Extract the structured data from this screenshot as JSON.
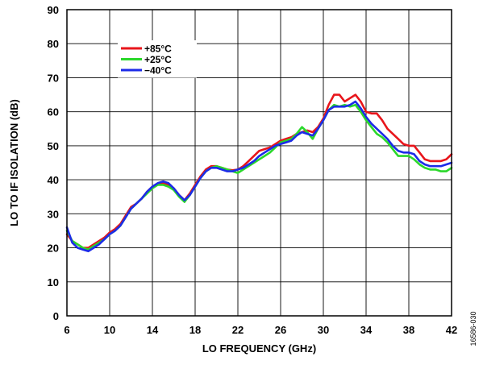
{
  "chart_data": {
    "type": "line",
    "xlabel": "LO FREQUENCY (GHz)",
    "ylabel": "LO TO IF ISOLATION (dB)",
    "xlim": [
      6,
      42
    ],
    "ylim": [
      0,
      90
    ],
    "xticks": [
      6,
      10,
      14,
      18,
      22,
      26,
      30,
      34,
      38,
      42
    ],
    "yticks": [
      0,
      10,
      20,
      30,
      40,
      50,
      60,
      70,
      80,
      90
    ],
    "grid": true,
    "legend_position": "top-left",
    "figure_id": "16586-030",
    "series": [
      {
        "name": "+85°C",
        "color": "#e8151b",
        "x": [
          6,
          6.5,
          7,
          7.5,
          8,
          8.5,
          9,
          9.5,
          10,
          10.5,
          11,
          11.5,
          12,
          12.5,
          13,
          13.5,
          14,
          14.5,
          15,
          15.5,
          16,
          16.5,
          17,
          17.5,
          18,
          18.5,
          19,
          19.5,
          20,
          20.5,
          21,
          21.5,
          22,
          22.5,
          23,
          23.5,
          24,
          24.5,
          25,
          25.5,
          26,
          26.5,
          27,
          27.5,
          28,
          28.5,
          29,
          29.5,
          30,
          30.5,
          31,
          31.5,
          32,
          32.5,
          33,
          33.5,
          34,
          34.5,
          35,
          35.5,
          36,
          36.5,
          37,
          37.5,
          38,
          38.5,
          39,
          39.5,
          40,
          40.5,
          41,
          41.5,
          42
        ],
        "y": [
          24,
          22,
          21,
          20,
          20,
          21,
          22,
          23,
          24.5,
          25.5,
          27,
          29.5,
          32,
          33,
          34.5,
          36.5,
          38,
          38.8,
          39,
          38.5,
          37.5,
          35.5,
          34,
          36,
          38.5,
          41,
          43,
          44,
          44,
          43.5,
          43,
          42.8,
          43,
          44,
          45.5,
          47,
          48.5,
          49,
          49.5,
          50.5,
          51.5,
          52,
          52.5,
          53.5,
          54,
          54.5,
          54,
          55.5,
          58,
          62,
          65,
          65,
          63,
          64,
          65,
          63,
          60,
          59.5,
          59.5,
          57.5,
          55,
          53.5,
          52,
          50.5,
          50,
          50,
          48,
          46,
          45.5,
          45.5,
          45.5,
          46,
          47.5
        ]
      },
      {
        "name": "+25°C",
        "color": "#2bd82b",
        "x": [
          6,
          6.5,
          7,
          7.5,
          8,
          8.5,
          9,
          9.5,
          10,
          10.5,
          11,
          11.5,
          12,
          12.5,
          13,
          13.5,
          14,
          14.5,
          15,
          15.5,
          16,
          16.5,
          17,
          17.5,
          18,
          18.5,
          19,
          19.5,
          20,
          20.5,
          21,
          21.5,
          22,
          22.5,
          23,
          23.5,
          24,
          24.5,
          25,
          25.5,
          26,
          26.5,
          27,
          27.5,
          28,
          28.5,
          29,
          29.5,
          30,
          30.5,
          31,
          31.5,
          32,
          32.5,
          33,
          33.5,
          34,
          34.5,
          35,
          35.5,
          36,
          36.5,
          37,
          37.5,
          38,
          38.5,
          39,
          39.5,
          40,
          40.5,
          41,
          41.5,
          42
        ],
        "y": [
          25,
          22,
          21,
          20,
          19.5,
          20.5,
          21.5,
          22.5,
          24,
          25,
          26.5,
          29,
          31.5,
          33,
          34.5,
          36,
          37.5,
          38.5,
          38.5,
          38,
          37,
          35,
          33.5,
          35.5,
          38,
          40.5,
          42.5,
          43.5,
          44,
          43.5,
          43,
          42.5,
          42,
          43,
          44,
          45,
          46,
          47,
          48,
          49.5,
          51,
          51.5,
          52,
          53.5,
          55.5,
          54,
          52,
          55,
          57.5,
          60.5,
          62,
          61.5,
          62,
          61.5,
          62,
          60,
          57.5,
          55.5,
          53.5,
          52.5,
          51,
          49,
          47,
          47,
          47,
          46,
          44.5,
          43.5,
          43,
          43,
          42.5,
          42.5,
          43.5
        ]
      },
      {
        "name": "−40°C",
        "color": "#1c2be8",
        "x": [
          6,
          6.5,
          7,
          7.5,
          8,
          8.5,
          9,
          9.5,
          10,
          10.5,
          11,
          11.5,
          12,
          12.5,
          13,
          13.5,
          14,
          14.5,
          15,
          15.5,
          16,
          16.5,
          17,
          17.5,
          18,
          18.5,
          19,
          19.5,
          20,
          20.5,
          21,
          21.5,
          22,
          22.5,
          23,
          23.5,
          24,
          24.5,
          25,
          25.5,
          26,
          26.5,
          27,
          27.5,
          28,
          28.5,
          29,
          29.5,
          30,
          30.5,
          31,
          31.5,
          32,
          32.5,
          33,
          33.5,
          34,
          34.5,
          35,
          35.5,
          36,
          36.5,
          37,
          37.5,
          38,
          38.5,
          39,
          39.5,
          40,
          40.5,
          41,
          41.5,
          42
        ],
        "y": [
          26,
          21.5,
          20,
          19.5,
          19,
          20,
          21,
          22.5,
          24,
          25,
          26.5,
          29,
          31.5,
          33,
          34.5,
          36.5,
          38,
          39,
          39.5,
          39,
          37.5,
          35.5,
          34,
          35.5,
          38,
          40.5,
          42.5,
          43.5,
          43.5,
          43,
          42.5,
          42.5,
          43,
          43.5,
          44.5,
          45.5,
          47,
          48,
          49,
          50,
          50.5,
          51,
          51.5,
          53,
          54,
          53.5,
          53,
          55,
          57.5,
          60.5,
          61.5,
          61.5,
          61.5,
          62,
          63,
          61,
          58.5,
          56.5,
          55,
          53.5,
          52,
          50,
          48.5,
          48,
          48,
          47.5,
          45.5,
          44.5,
          44,
          44,
          44,
          44.5,
          45
        ]
      }
    ]
  }
}
